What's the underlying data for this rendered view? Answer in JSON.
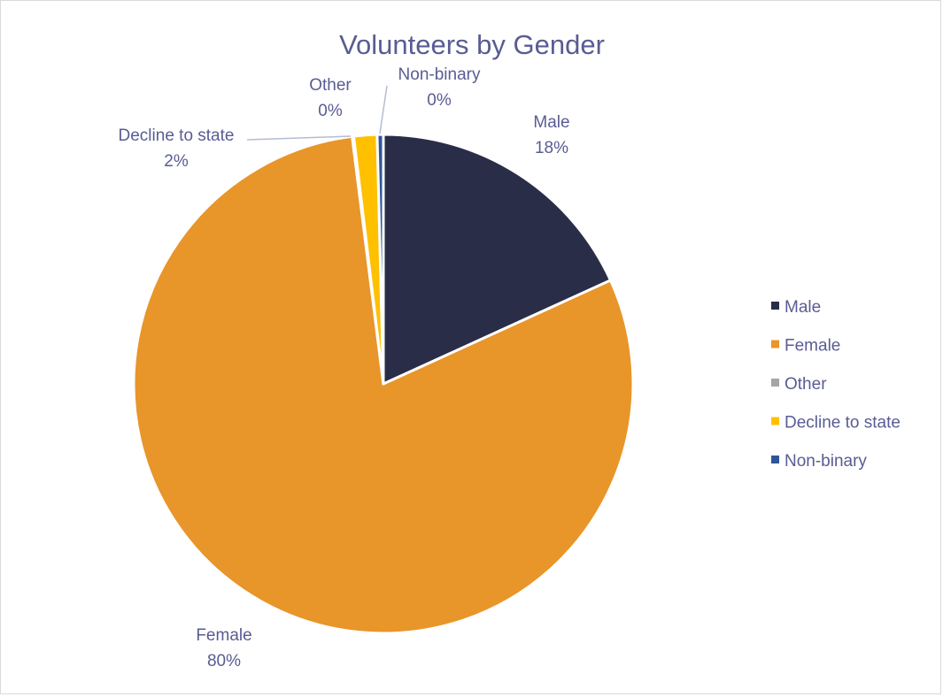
{
  "chart_data": {
    "type": "pie",
    "title": "Volunteers by Gender",
    "categories": [
      "Male",
      "Female",
      "Other",
      "Decline to state",
      "Non-binary"
    ],
    "values": [
      18.2,
      79.9,
      0.1,
      1.5,
      0.4
    ],
    "data_labels": [
      {
        "name": "Male",
        "percent": "18%"
      },
      {
        "name": "Female",
        "percent": "80%"
      },
      {
        "name": "Other",
        "percent": "0%"
      },
      {
        "name": "Decline to state",
        "percent": "2%"
      },
      {
        "name": "Non-binary",
        "percent": "0%"
      }
    ],
    "colors": [
      "#2a2d47",
      "#e8952a",
      "#a5a5a5",
      "#ffc000",
      "#2f5597"
    ],
    "text_color": "#595c93",
    "legend": {
      "placement": "right",
      "items": [
        "Male",
        "Female",
        "Other",
        "Decline to state",
        "Non-binary"
      ]
    }
  }
}
